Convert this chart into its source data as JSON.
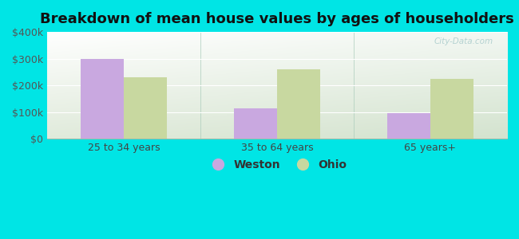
{
  "title": "Breakdown of mean house values by ages of householders",
  "categories": [
    "25 to 34 years",
    "35 to 64 years",
    "65 years+"
  ],
  "weston_values": [
    300000,
    113000,
    95000
  ],
  "ohio_values": [
    230000,
    260000,
    225000
  ],
  "weston_color": "#c9a8e0",
  "ohio_color": "#c8d8a0",
  "ylim": [
    0,
    400000
  ],
  "yticks": [
    0,
    100000,
    200000,
    300000,
    400000
  ],
  "ytick_labels": [
    "$0",
    "$100k",
    "$200k",
    "$300k",
    "$400k"
  ],
  "legend_weston": "Weston",
  "legend_ohio": "Ohio",
  "background_outer": "#00e5e5",
  "bar_width": 0.28,
  "title_fontsize": 13,
  "tick_fontsize": 9,
  "legend_fontsize": 10,
  "watermark_text": "City-Data.com",
  "separator_color": "#aaddcc",
  "grid_color": "#ffffff"
}
